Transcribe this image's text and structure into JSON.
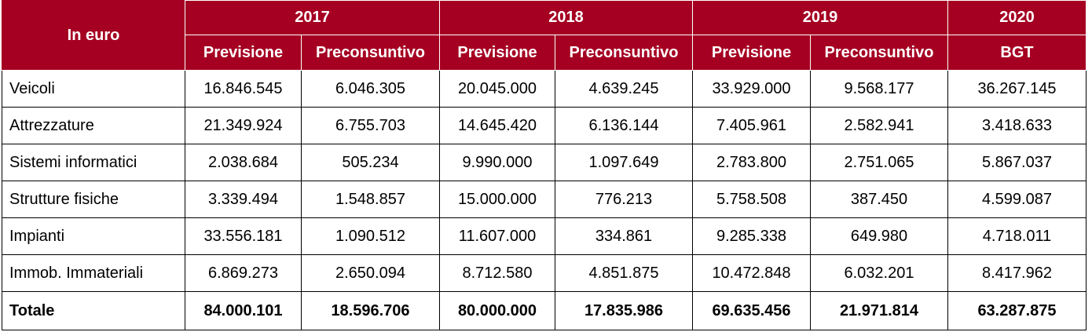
{
  "table": {
    "corner_label": "In euro",
    "years": [
      "2017",
      "2018",
      "2019",
      "2020"
    ],
    "subheaders": [
      "Previsione",
      "Preconsuntivo",
      "Previsione",
      "Preconsuntivo",
      "Previsione",
      "Preconsuntivo",
      "BGT"
    ],
    "rows": [
      {
        "label": "Veicoli",
        "values": [
          "16.846.545",
          "6.046.305",
          "20.045.000",
          "4.639.245",
          "33.929.000",
          "9.568.177",
          "36.267.145"
        ]
      },
      {
        "label": "Attrezzature",
        "values": [
          "21.349.924",
          "6.755.703",
          "14.645.420",
          "6.136.144",
          "7.405.961",
          "2.582.941",
          "3.418.633"
        ]
      },
      {
        "label": "Sistemi informatici",
        "values": [
          "2.038.684",
          "505.234",
          "9.990.000",
          "1.097.649",
          "2.783.800",
          "2.751.065",
          "5.867.037"
        ]
      },
      {
        "label": "Strutture fisiche",
        "values": [
          "3.339.494",
          "1.548.857",
          "15.000.000",
          "776.213",
          "5.758.508",
          "387.450",
          "4.599.087"
        ]
      },
      {
        "label": "Impianti",
        "values": [
          "33.556.181",
          "1.090.512",
          "11.607.000",
          "334.861",
          "9.285.338",
          "649.980",
          "4.718.011"
        ]
      },
      {
        "label": "Immob. Immateriali",
        "values": [
          "6.869.273",
          "2.650.094",
          "8.712.580",
          "4.851.875",
          "10.472.848",
          "6.032.201",
          "8.417.962"
        ]
      }
    ],
    "total": {
      "label": "Totale",
      "values": [
        "84.000.101",
        "18.596.706",
        "80.000.000",
        "17.835.986",
        "69.635.456",
        "21.971.814",
        "63.287.875"
      ]
    }
  },
  "colors": {
    "header_bg": "#a50021",
    "header_text": "#ffffff",
    "border": "#000000"
  }
}
